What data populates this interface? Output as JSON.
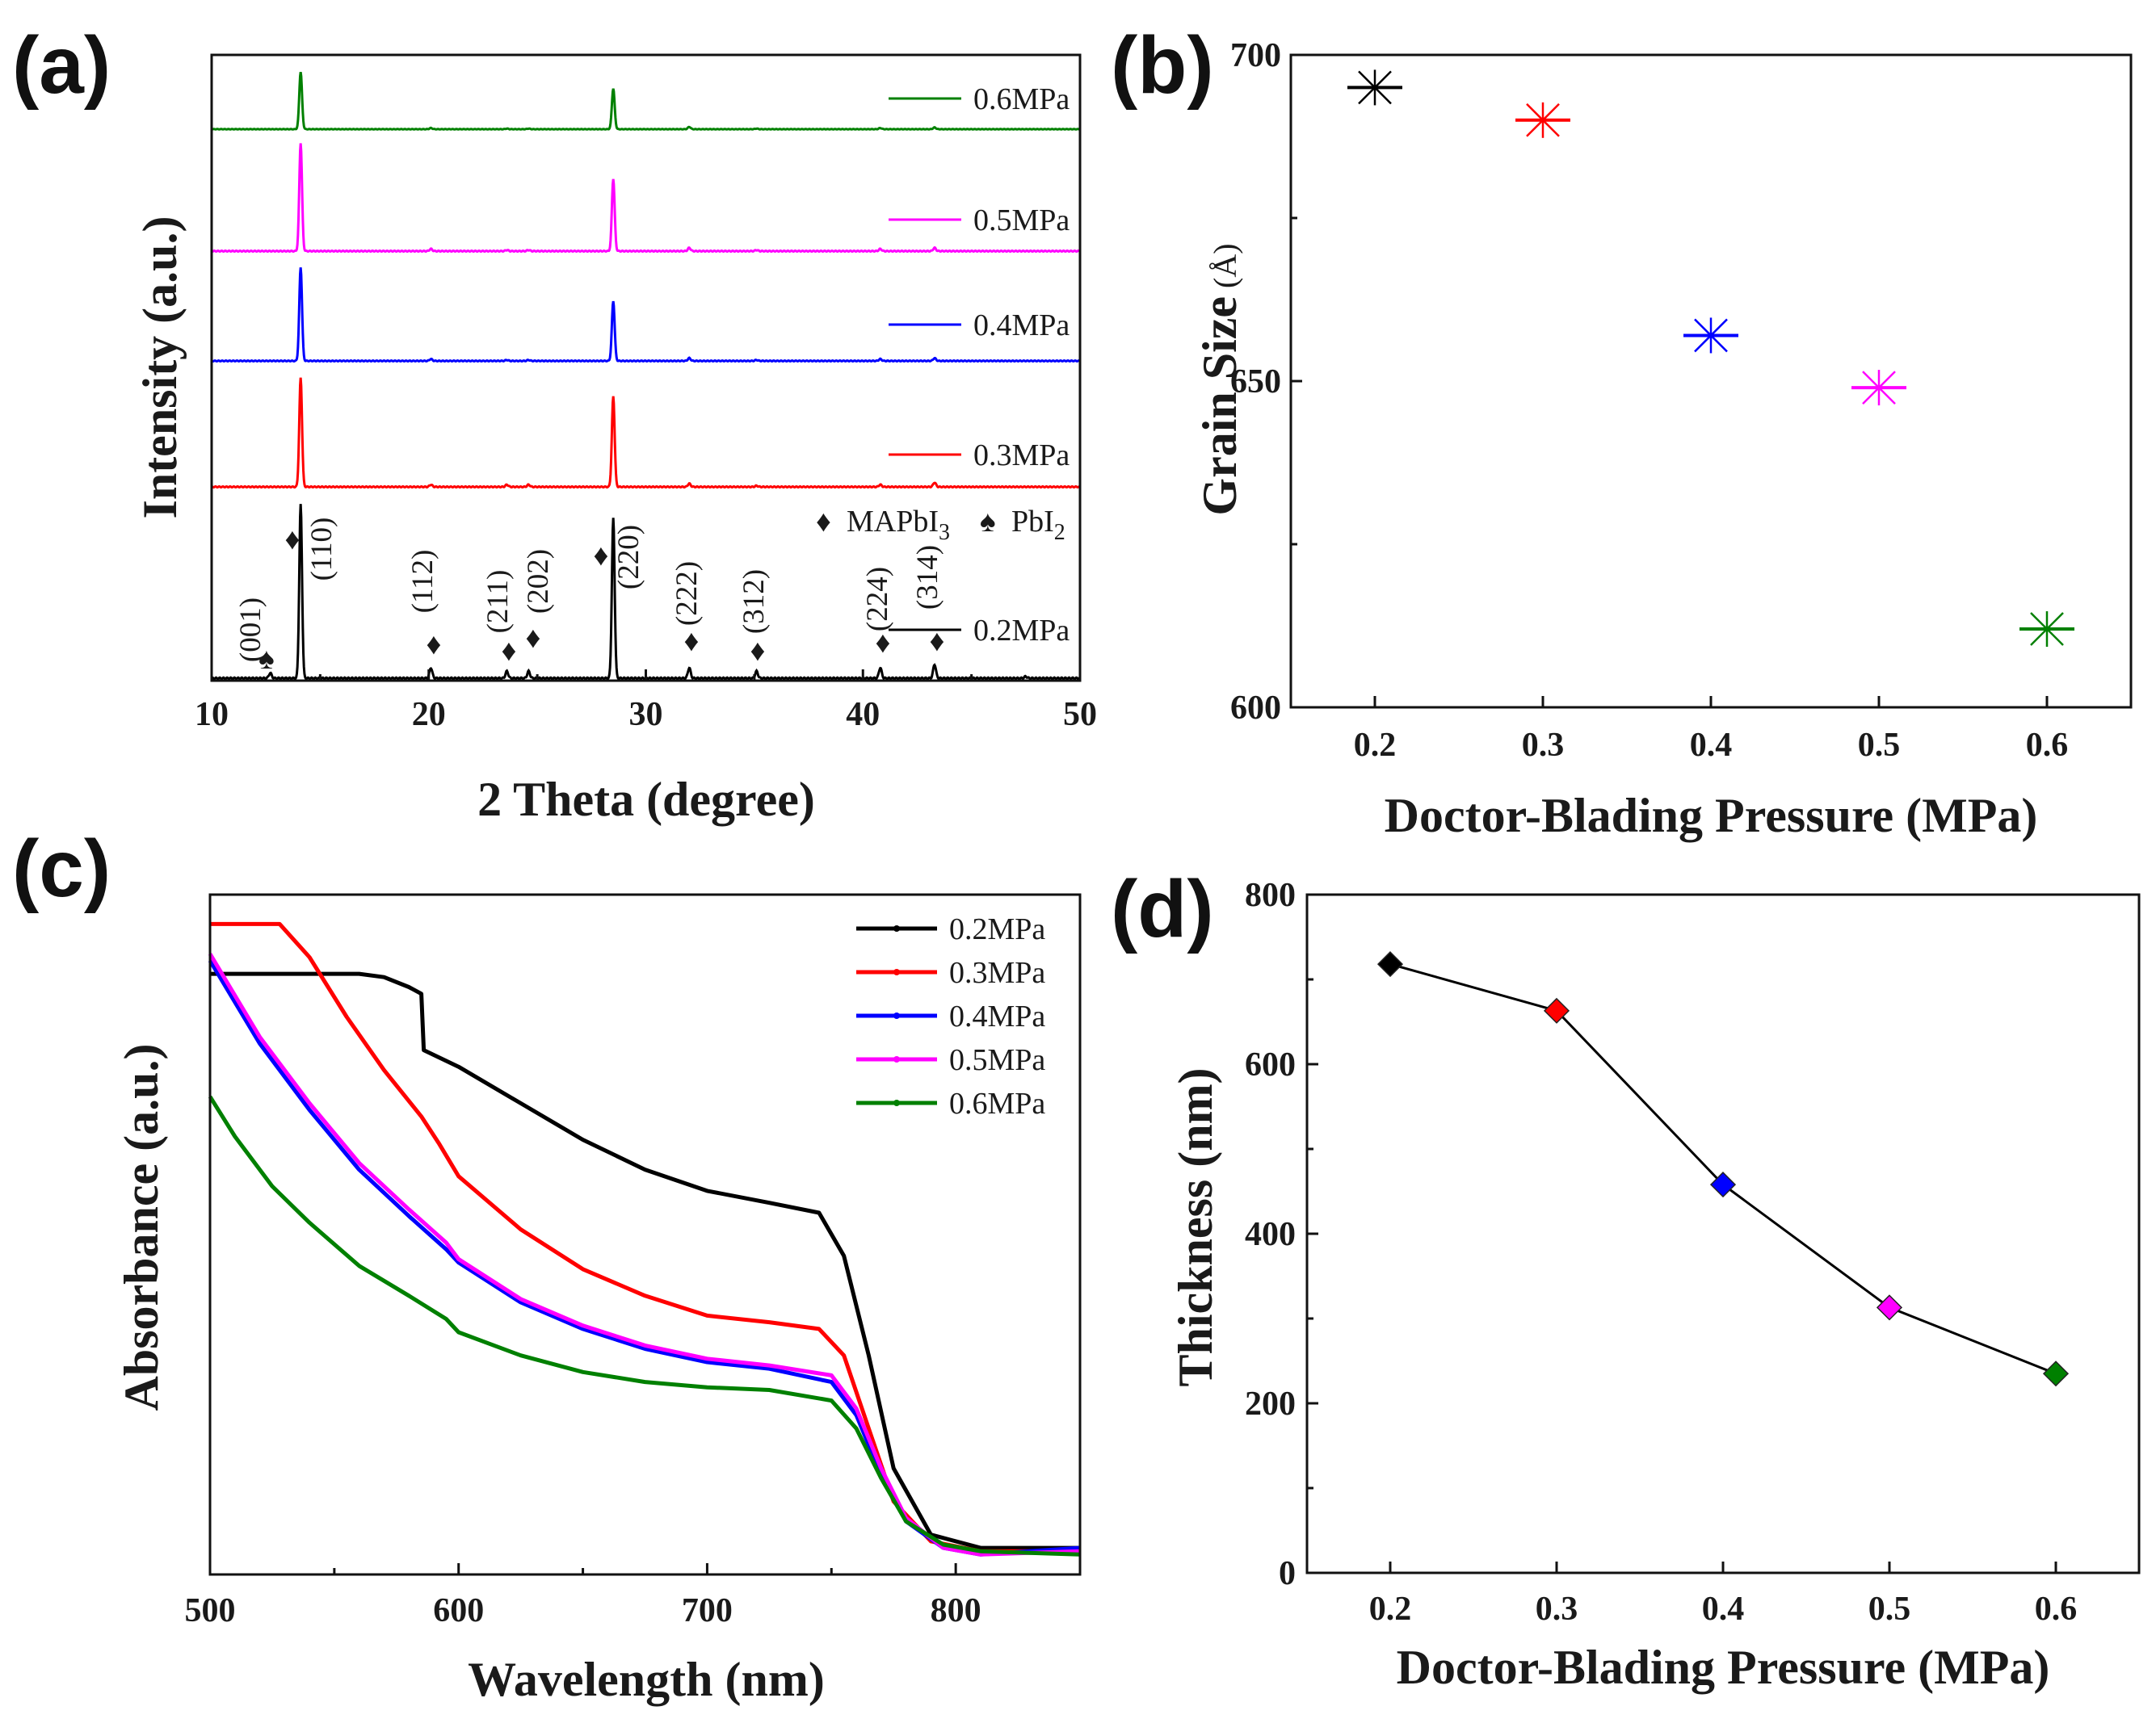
{
  "figure": {
    "panel_labels": [
      "(a)",
      "(b)",
      "(c)",
      "(d)"
    ],
    "series_colors": {
      "0.2MPa": "#000000",
      "0.3MPa": "#ff0000",
      "0.4MPa": "#0000ff",
      "0.5MPa": "#ff00ff",
      "0.6MPa": "#008000"
    }
  },
  "chart_data": [
    {
      "panel": "(a)",
      "type": "line",
      "title": "",
      "xlabel": "2 Theta (degree)",
      "ylabel": "Intensity (a.u.)",
      "xlim": [
        10,
        50
      ],
      "xticks": [
        10,
        20,
        30,
        40,
        50
      ],
      "series": [
        {
          "name": "0.2MPa",
          "color": "#000000",
          "peaks": [
            [
              12.7,
              0.03
            ],
            [
              14.1,
              1.0
            ],
            [
              20.1,
              0.06
            ],
            [
              23.6,
              0.04
            ],
            [
              24.6,
              0.04
            ],
            [
              28.5,
              0.92
            ],
            [
              32.0,
              0.06
            ],
            [
              35.1,
              0.04
            ],
            [
              40.8,
              0.06
            ],
            [
              43.3,
              0.08
            ],
            [
              47.5,
              0.01
            ]
          ]
        },
        {
          "name": "0.3MPa",
          "color": "#ff0000",
          "peaks": [
            [
              14.1,
              1.0
            ],
            [
              20.1,
              0.02
            ],
            [
              23.6,
              0.02
            ],
            [
              24.6,
              0.02
            ],
            [
              28.5,
              0.83
            ],
            [
              32.0,
              0.03
            ],
            [
              35.1,
              0.01
            ],
            [
              40.8,
              0.02
            ],
            [
              43.3,
              0.04
            ]
          ]
        },
        {
          "name": "0.4MPa",
          "color": "#0000ff",
          "peaks": [
            [
              14.1,
              1.0
            ],
            [
              20.1,
              0.02
            ],
            [
              23.6,
              0.01
            ],
            [
              24.6,
              0.01
            ],
            [
              28.5,
              0.64
            ],
            [
              32.0,
              0.03
            ],
            [
              35.1,
              0.01
            ],
            [
              40.8,
              0.02
            ],
            [
              43.3,
              0.03
            ]
          ]
        },
        {
          "name": "0.5MPa",
          "color": "#ff00ff",
          "peaks": [
            [
              14.1,
              1.0
            ],
            [
              20.1,
              0.02
            ],
            [
              23.6,
              0.01
            ],
            [
              24.6,
              0.01
            ],
            [
              28.5,
              0.67
            ],
            [
              32.0,
              0.03
            ],
            [
              35.1,
              0.01
            ],
            [
              40.8,
              0.02
            ],
            [
              43.3,
              0.03
            ]
          ]
        },
        {
          "name": "0.6MPa",
          "color": "#008000",
          "peaks": [
            [
              14.1,
              1.0
            ],
            [
              20.1,
              0.02
            ],
            [
              23.6,
              0.01
            ],
            [
              24.6,
              0.01
            ],
            [
              28.5,
              0.71
            ],
            [
              32.0,
              0.04
            ],
            [
              35.1,
              0.01
            ],
            [
              40.8,
              0.02
            ],
            [
              43.3,
              0.03
            ]
          ]
        }
      ],
      "annotations": [
        {
          "label": "(001)",
          "x": 12.7,
          "marker": "♠"
        },
        {
          "label": "(110)",
          "x": 14.1,
          "marker": "♦"
        },
        {
          "label": "(112)",
          "x": 20.1,
          "marker": "♦"
        },
        {
          "label": "(211)",
          "x": 23.6,
          "marker": "♦"
        },
        {
          "label": "(202)",
          "x": 24.6,
          "marker": "♦"
        },
        {
          "label": "(220)",
          "x": 28.5,
          "marker": "♦"
        },
        {
          "label": "(222)",
          "x": 32.0,
          "marker": "♦"
        },
        {
          "label": "(312)",
          "x": 35.1,
          "marker": "♦"
        },
        {
          "label": "(224)",
          "x": 40.8,
          "marker": "♦"
        },
        {
          "label": "(314)",
          "x": 43.3,
          "marker": "♦"
        }
      ],
      "phase_legend": {
        "mapbi3_marker": "♦",
        "mapbi3_text": "MAPbI",
        "mapbi3_sub": "3",
        "pbi2_marker": "♠",
        "pbi2_text": "PbI",
        "pbi2_sub": "2"
      }
    },
    {
      "panel": "(b)",
      "type": "scatter",
      "title": "",
      "xlabel": "Doctor-Blading Pressure (MPa)",
      "ylabel": "Grain Size",
      "ylabel_unit": "(Å)",
      "xlim": [
        0.15,
        0.65
      ],
      "ylim": [
        600,
        700
      ],
      "xticks": [
        0.2,
        0.3,
        0.4,
        0.5,
        0.6
      ],
      "xticklabels": [
        "0.2",
        "0.3",
        "0.4",
        "0.5",
        "0.6"
      ],
      "yticks": [
        600,
        650,
        700
      ],
      "x": [
        0.2,
        0.3,
        0.4,
        0.5,
        0.6
      ],
      "y": [
        695,
        690,
        657,
        649,
        612
      ],
      "colors": [
        "#000000",
        "#ff0000",
        "#0000ff",
        "#ff00ff",
        "#008000"
      ],
      "marker": "asterisk"
    },
    {
      "panel": "(c)",
      "type": "line",
      "title": "",
      "xlabel": "Wavelength (nm)",
      "ylabel": "Absorbance (a.u.)",
      "xlim": [
        500,
        850
      ],
      "ylim": [
        0,
        1
      ],
      "xticks": [
        500,
        600,
        700,
        800
      ],
      "series": [
        {
          "name": "0.2MPa",
          "color": "#000000",
          "x": [
            500,
            560,
            570,
            580,
            585,
            586,
            600,
            625,
            650,
            675,
            700,
            725,
            745,
            755,
            765,
            775,
            790,
            810,
            850
          ],
          "y": [
            0.905,
            0.905,
            0.9,
            0.885,
            0.875,
            0.79,
            0.765,
            0.71,
            0.655,
            0.61,
            0.578,
            0.56,
            0.545,
            0.48,
            0.33,
            0.16,
            0.06,
            0.04,
            0.04
          ]
        },
        {
          "name": "0.3MPa",
          "color": "#ff0000",
          "x": [
            500,
            528,
            540,
            555,
            570,
            585,
            592,
            600,
            625,
            650,
            675,
            700,
            725,
            745,
            755,
            765,
            775,
            790,
            810,
            850
          ],
          "y": [
            0.98,
            0.98,
            0.93,
            0.84,
            0.76,
            0.69,
            0.65,
            0.6,
            0.52,
            0.46,
            0.42,
            0.39,
            0.38,
            0.37,
            0.33,
            0.22,
            0.11,
            0.05,
            0.035,
            0.035
          ]
        },
        {
          "name": "0.4MPa",
          "color": "#0000ff",
          "x": [
            500,
            520,
            540,
            560,
            580,
            595,
            600,
            625,
            650,
            675,
            700,
            725,
            750,
            760,
            770,
            780,
            795,
            810,
            850
          ],
          "y": [
            0.925,
            0.8,
            0.7,
            0.61,
            0.54,
            0.49,
            0.47,
            0.41,
            0.37,
            0.34,
            0.32,
            0.31,
            0.29,
            0.24,
            0.15,
            0.08,
            0.04,
            0.03,
            0.04
          ]
        },
        {
          "name": "0.5MPa",
          "color": "#ff00ff",
          "x": [
            500,
            520,
            540,
            560,
            580,
            595,
            600,
            625,
            650,
            675,
            700,
            725,
            750,
            760,
            770,
            780,
            795,
            810,
            850
          ],
          "y": [
            0.935,
            0.81,
            0.71,
            0.62,
            0.55,
            0.5,
            0.475,
            0.415,
            0.375,
            0.345,
            0.325,
            0.315,
            0.3,
            0.25,
            0.16,
            0.085,
            0.04,
            0.03,
            0.035
          ]
        },
        {
          "name": "0.6MPa",
          "color": "#008000",
          "x": [
            500,
            510,
            525,
            540,
            560,
            580,
            595,
            600,
            625,
            650,
            675,
            700,
            725,
            750,
            760,
            770,
            780,
            795,
            810,
            850
          ],
          "y": [
            0.72,
            0.66,
            0.585,
            0.53,
            0.465,
            0.42,
            0.385,
            0.365,
            0.33,
            0.305,
            0.29,
            0.282,
            0.278,
            0.262,
            0.22,
            0.145,
            0.08,
            0.045,
            0.035,
            0.03
          ]
        }
      ]
    },
    {
      "panel": "(d)",
      "type": "line",
      "title": "",
      "xlabel": "Doctor-Blading Pressure (MPa)",
      "ylabel": "Thickness (nm)",
      "xlim": [
        0.15,
        0.65
      ],
      "ylim": [
        0,
        800
      ],
      "xticks": [
        0.2,
        0.3,
        0.4,
        0.5,
        0.6
      ],
      "xticklabels": [
        "0.2",
        "0.3",
        "0.4",
        "0.5",
        "0.6"
      ],
      "yticks": [
        0,
        200,
        400,
        600,
        800
      ],
      "x": [
        0.2,
        0.3,
        0.4,
        0.5,
        0.6
      ],
      "y": [
        718,
        663,
        458,
        313,
        235
      ],
      "colors": [
        "#000000",
        "#ff0000",
        "#0000ff",
        "#ff00ff",
        "#008000"
      ],
      "marker": "diamond",
      "line_color": "#000000"
    }
  ]
}
